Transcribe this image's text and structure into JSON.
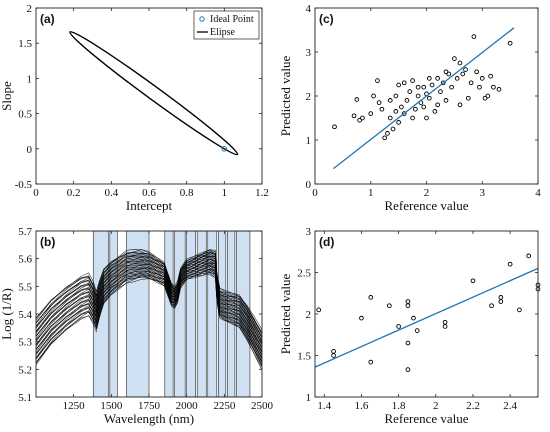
{
  "chart_data": [
    {
      "panel": "(a)",
      "type": "line",
      "xlabel": "Intercept",
      "ylabel": "Slope",
      "xlim": [
        0,
        1.2
      ],
      "ylim": [
        -0.5,
        2
      ],
      "xticks": [
        "0",
        "0.2",
        "0.4",
        "0.6",
        "0.8",
        "1",
        "1.2"
      ],
      "yticks": [
        "-0.5",
        "0",
        "0.5",
        "1",
        "1.5",
        "2"
      ],
      "legend": [
        "Ideal Point",
        "Elipse"
      ],
      "legend_position": "top-right",
      "ideal_point": {
        "x": 1,
        "y": 0
      },
      "ellipse": {
        "x": [
          0.18,
          1.07
        ],
        "y": [
          -0.08,
          1.66
        ]
      },
      "colors": {
        "ideal_point": "#1f77b4",
        "ellipse": "#000000"
      }
    },
    {
      "panel": "(c)",
      "type": "scatter",
      "xlabel": "Reference value",
      "ylabel": "Predicted value",
      "xlim": [
        0,
        4
      ],
      "ylim": [
        0,
        4
      ],
      "xticks": [
        "0",
        "1",
        "2",
        "3",
        "4"
      ],
      "yticks": [
        "0",
        "1",
        "2",
        "3",
        "4"
      ],
      "fit_line": {
        "x": [
          0.33,
          3.57
        ],
        "y": [
          0.35,
          3.55
        ]
      },
      "points": [
        [
          0.35,
          1.3
        ],
        [
          0.7,
          1.55
        ],
        [
          0.75,
          1.92
        ],
        [
          0.8,
          1.45
        ],
        [
          0.85,
          1.5
        ],
        [
          1.0,
          1.6
        ],
        [
          1.05,
          2.0
        ],
        [
          1.12,
          2.35
        ],
        [
          1.2,
          1.7
        ],
        [
          1.25,
          1.05
        ],
        [
          1.35,
          1.9
        ],
        [
          1.35,
          1.5
        ],
        [
          1.4,
          1.25
        ],
        [
          1.45,
          1.65
        ],
        [
          1.45,
          2.0
        ],
        [
          1.5,
          2.25
        ],
        [
          1.55,
          1.75
        ],
        [
          1.6,
          1.6
        ],
        [
          1.6,
          2.3
        ],
        [
          1.65,
          1.9
        ],
        [
          1.7,
          2.1
        ],
        [
          1.75,
          2.35
        ],
        [
          1.75,
          1.5
        ],
        [
          1.8,
          1.7
        ],
        [
          1.85,
          2.0
        ],
        [
          1.9,
          1.85
        ],
        [
          1.95,
          2.2
        ],
        [
          2.0,
          1.5
        ],
        [
          2.0,
          2.05
        ],
        [
          2.05,
          1.95
        ],
        [
          2.1,
          2.25
        ],
        [
          2.15,
          1.65
        ],
        [
          2.2,
          2.4
        ],
        [
          2.2,
          1.8
        ],
        [
          2.25,
          2.1
        ],
        [
          2.3,
          2.3
        ],
        [
          2.35,
          1.9
        ],
        [
          2.4,
          2.5
        ],
        [
          2.45,
          2.2
        ],
        [
          2.5,
          2.85
        ],
        [
          2.55,
          2.4
        ],
        [
          2.6,
          1.8
        ],
        [
          2.65,
          2.5
        ],
        [
          2.7,
          2.6
        ],
        [
          2.75,
          1.95
        ],
        [
          2.8,
          2.3
        ],
        [
          2.85,
          3.35
        ],
        [
          2.9,
          2.55
        ],
        [
          2.95,
          2.2
        ],
        [
          3.0,
          2.4
        ],
        [
          3.05,
          1.95
        ],
        [
          3.1,
          2.0
        ],
        [
          3.15,
          2.45
        ],
        [
          3.2,
          2.2
        ],
        [
          3.3,
          2.15
        ],
        [
          3.5,
          3.2
        ],
        [
          1.3,
          1.15
        ],
        [
          1.5,
          1.4
        ],
        [
          1.85,
          2.2
        ],
        [
          2.05,
          2.4
        ],
        [
          2.35,
          2.55
        ],
        [
          2.6,
          2.75
        ],
        [
          1.15,
          1.85
        ],
        [
          1.95,
          1.75
        ]
      ],
      "colors": {
        "points": "#000000",
        "fit_line": "#1f77b4"
      }
    },
    {
      "panel": "(b)",
      "type": "line",
      "xlabel": "Wavelength (nm)",
      "ylabel": "Log (1/R)",
      "xlim": [
        1000,
        2500
      ],
      "ylim": [
        5.1,
        5.7
      ],
      "xticks": [
        "1250",
        "1500",
        "1750",
        "2000",
        "2250",
        "2500"
      ],
      "yticks": [
        "5.1",
        "5.2",
        "5.3",
        "5.4",
        "5.5",
        "5.6",
        "5.7"
      ],
      "highlight_bands": [
        [
          1380,
          1480
        ],
        [
          1490,
          1540
        ],
        [
          1600,
          1750
        ],
        [
          1855,
          1910
        ],
        [
          1920,
          1990
        ],
        [
          2000,
          2060
        ],
        [
          2070,
          2130
        ],
        [
          2140,
          2200
        ],
        [
          2210,
          2260
        ],
        [
          2270,
          2320
        ],
        [
          2330,
          2420
        ]
      ],
      "spectrum_profile": {
        "x": [
          1000,
          1100,
          1200,
          1300,
          1350,
          1380,
          1400,
          1420,
          1450,
          1500,
          1550,
          1600,
          1650,
          1700,
          1750,
          1800,
          1850,
          1900,
          1920,
          1940,
          1960,
          2000,
          2050,
          2100,
          2150,
          2190,
          2200,
          2220,
          2250,
          2300,
          2350,
          2400,
          2450,
          2500
        ],
        "y": [
          5.3,
          5.37,
          5.42,
          5.46,
          5.47,
          5.44,
          5.41,
          5.45,
          5.5,
          5.53,
          5.55,
          5.57,
          5.575,
          5.58,
          5.575,
          5.56,
          5.545,
          5.47,
          5.46,
          5.48,
          5.53,
          5.56,
          5.57,
          5.58,
          5.59,
          5.58,
          5.5,
          5.44,
          5.43,
          5.42,
          5.41,
          5.37,
          5.32,
          5.27
        ]
      },
      "n_spectra": 40,
      "colors": {
        "spectra": "#000000",
        "bands": "#cfe0f3"
      }
    },
    {
      "panel": "(d)",
      "type": "scatter",
      "xlabel": "Reference value",
      "ylabel": "Predicted value",
      "xlim": [
        1.35,
        2.55
      ],
      "ylim": [
        1.0,
        3.0
      ],
      "xticks": [
        "1.4",
        "1.6",
        "1.8",
        "2",
        "2.2",
        "2.4"
      ],
      "yticks": [
        "1",
        "1.5",
        "2",
        "2.5",
        "3"
      ],
      "fit_line": {
        "x": [
          1.35,
          2.55
        ],
        "y": [
          1.36,
          2.55
        ]
      },
      "points": [
        [
          1.37,
          2.05
        ],
        [
          1.45,
          1.55
        ],
        [
          1.45,
          1.5
        ],
        [
          1.6,
          1.95
        ],
        [
          1.65,
          2.2
        ],
        [
          1.65,
          1.42
        ],
        [
          1.75,
          2.1
        ],
        [
          1.8,
          1.85
        ],
        [
          1.85,
          2.15
        ],
        [
          1.85,
          2.1
        ],
        [
          1.85,
          1.65
        ],
        [
          1.85,
          1.33
        ],
        [
          1.88,
          1.95
        ],
        [
          1.9,
          1.8
        ],
        [
          2.05,
          1.9
        ],
        [
          2.05,
          1.85
        ],
        [
          2.2,
          2.4
        ],
        [
          2.3,
          2.1
        ],
        [
          2.35,
          2.2
        ],
        [
          2.35,
          2.15
        ],
        [
          2.4,
          2.6
        ],
        [
          2.45,
          2.05
        ],
        [
          2.5,
          2.7
        ],
        [
          2.55,
          2.35
        ],
        [
          2.55,
          2.3
        ]
      ],
      "colors": {
        "points": "#000000",
        "fit_line": "#1f77b4"
      }
    }
  ]
}
